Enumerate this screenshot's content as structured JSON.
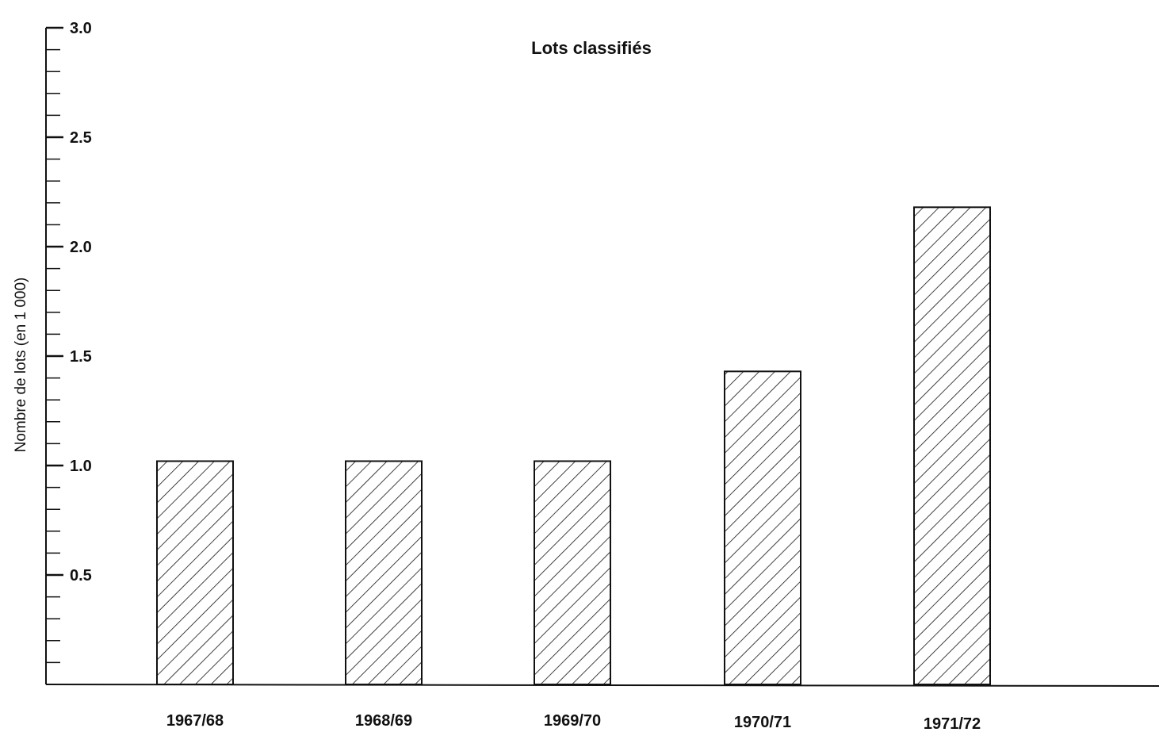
{
  "chart_data": {
    "type": "bar",
    "title": "Lots classifiés",
    "xlabel": "",
    "ylabel": "Nombre de lots (en 1 000)",
    "categories": [
      "1967/68",
      "1968/69",
      "1969/70",
      "1970/71",
      "1971/72"
    ],
    "values": [
      1.02,
      1.02,
      1.02,
      1.43,
      2.18
    ],
    "ylim": [
      0,
      3.0
    ],
    "yticks": [
      "0.5",
      "1.0",
      "1.5",
      "2.0",
      "2.5",
      "3.0"
    ],
    "bar_fill": "diagonal-hatch",
    "colors": {
      "ink": "#111111",
      "background": "#ffffff"
    },
    "grid": false,
    "legend": "none"
  }
}
